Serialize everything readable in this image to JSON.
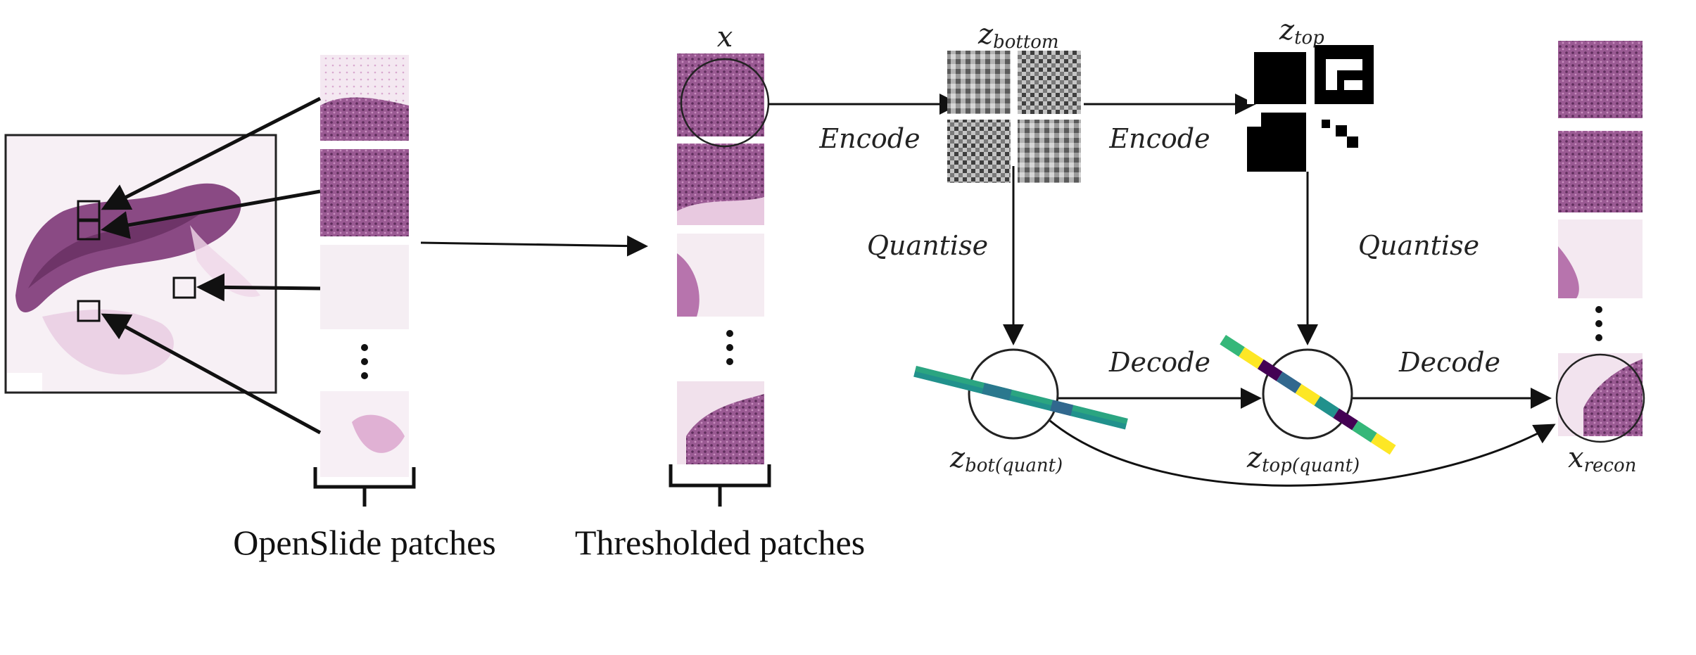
{
  "labels": {
    "encode_1": "Encode",
    "encode_2": "Encode",
    "quantise_1": "Quantise",
    "quantise_2": "Quantise",
    "decode_1": "Decode",
    "decode_2": "Decode",
    "x_main": "x",
    "z_bottom_base": "z",
    "z_bottom_sub": "bottom",
    "z_top_base": "z",
    "z_top_sub": "top",
    "z_bot_quant_base": "z",
    "z_bot_quant_sub": "bot(quant)",
    "z_top_quant_base": "z",
    "z_top_quant_sub": "top(quant)",
    "x_recon_base": "x",
    "x_recon_sub": "recon"
  },
  "captions": {
    "openslide": "OpenSlide patches",
    "thresholded": "Thresholded patches"
  },
  "colors": {
    "tissue_dark": "#8a4a84",
    "tissue_mid": "#b774ad",
    "tissue_light": "#e8c3df",
    "background": "#f6eef4",
    "viridis_purple": "#440154",
    "viridis_blue": "#31688e",
    "viridis_teal": "#21918c",
    "viridis_green": "#35b779",
    "viridis_yellow": "#fde725"
  }
}
